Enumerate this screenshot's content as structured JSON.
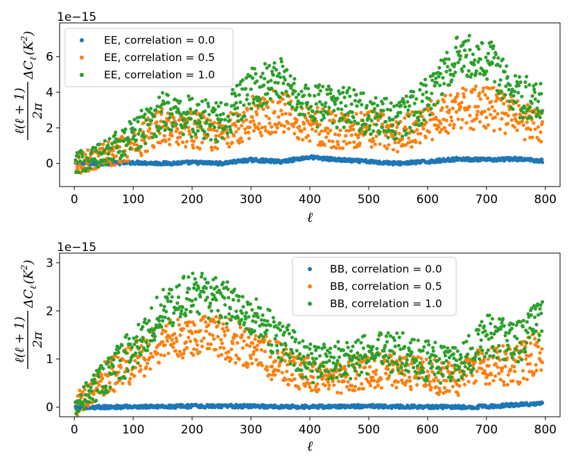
{
  "colors": {
    "c0": "#1f77b4",
    "c1": "#ff7f0e",
    "c2": "#2ca02c"
  },
  "chart_data": [
    {
      "type": "scatter",
      "name": "EE",
      "title": "",
      "xlabel": "ℓ",
      "ylabel": {
        "fraction_numerator": "ℓ(ℓ + 1)",
        "fraction_denominator": "2π",
        "rest": "ΔC",
        "subscript": "ℓ",
        "paren_open": "(K",
        "superscript": "2",
        "paren_close": ")"
      },
      "offset_text": "1e−15",
      "xlim": [
        -25,
        825
      ],
      "ylim": [
        -1.3,
        7.9
      ],
      "xticks": [
        0,
        100,
        200,
        300,
        400,
        500,
        600,
        700,
        800
      ],
      "xtick_labels": [
        "0",
        "100",
        "200",
        "300",
        "400",
        "500",
        "600",
        "700",
        "800"
      ],
      "yticks": [
        0,
        2,
        4,
        6
      ],
      "ytick_labels": [
        "0",
        "2",
        "4",
        "6"
      ],
      "legend_position": "upper-left",
      "series": [
        {
          "name": "EE, correlation = 0.0",
          "color": "#1f77b4",
          "x": [
            0,
            50,
            100,
            150,
            200,
            250,
            300,
            350,
            400,
            450,
            500,
            550,
            600,
            650,
            700,
            750,
            795
          ],
          "y": [
            0.0,
            0.0,
            0.05,
            0.0,
            0.05,
            0.0,
            0.2,
            0.1,
            0.35,
            0.2,
            0.1,
            0.0,
            0.1,
            0.25,
            0.2,
            0.25,
            0.15
          ]
        },
        {
          "name": "EE, correlation = 0.5",
          "color": "#ff7f0e",
          "x": [
            0,
            50,
            100,
            150,
            200,
            250,
            300,
            350,
            400,
            450,
            500,
            550,
            600,
            650,
            700,
            750,
            795
          ],
          "y": [
            0.0,
            0.4,
            1.0,
            2.2,
            1.9,
            1.6,
            2.6,
            3.0,
            2.2,
            1.8,
            2.0,
            1.6,
            2.3,
            3.0,
            3.2,
            2.6,
            2.0
          ]
        },
        {
          "name": "EE, correlation = 1.0",
          "color": "#2ca02c",
          "x": [
            0,
            50,
            100,
            150,
            200,
            250,
            300,
            350,
            400,
            450,
            500,
            550,
            600,
            650,
            700,
            750,
            795
          ],
          "y": [
            0.0,
            0.5,
            1.6,
            3.0,
            2.6,
            2.3,
            4.2,
            4.8,
            3.2,
            3.2,
            2.8,
            2.4,
            3.6,
            6.0,
            6.0,
            3.8,
            3.5
          ]
        }
      ]
    },
    {
      "type": "scatter",
      "name": "BB",
      "title": "",
      "xlabel": "ℓ",
      "ylabel": {
        "fraction_numerator": "ℓ(ℓ + 1)",
        "fraction_denominator": "2π",
        "rest": "ΔC",
        "subscript": "ℓ",
        "paren_open": "(K",
        "superscript": "2",
        "paren_close": ")"
      },
      "offset_text": "1e−15",
      "xlim": [
        -25,
        825
      ],
      "ylim": [
        -0.2,
        3.2
      ],
      "xticks": [
        0,
        100,
        200,
        300,
        400,
        500,
        600,
        700,
        800
      ],
      "xtick_labels": [
        "0",
        "100",
        "200",
        "300",
        "400",
        "500",
        "600",
        "700",
        "800"
      ],
      "yticks": [
        0,
        1,
        2,
        3
      ],
      "ytick_labels": [
        "0",
        "1",
        "2",
        "3"
      ],
      "legend_position": "upper-right",
      "series": [
        {
          "name": "BB, correlation = 0.0",
          "color": "#1f77b4",
          "x": [
            0,
            50,
            100,
            150,
            200,
            250,
            300,
            350,
            400,
            450,
            500,
            550,
            600,
            650,
            700,
            750,
            795
          ],
          "y": [
            0.0,
            0.0,
            0.01,
            0.01,
            0.02,
            0.02,
            0.02,
            0.01,
            0.01,
            0.01,
            0.02,
            0.01,
            0.01,
            0.0,
            0.01,
            0.05,
            0.08
          ]
        },
        {
          "name": "BB, correlation = 0.5",
          "color": "#ff7f0e",
          "x": [
            0,
            50,
            100,
            150,
            200,
            250,
            300,
            350,
            400,
            450,
            500,
            550,
            600,
            650,
            700,
            750,
            795
          ],
          "y": [
            0.0,
            0.6,
            0.9,
            1.4,
            1.5,
            1.45,
            1.25,
            0.9,
            0.65,
            0.65,
            0.75,
            0.75,
            0.65,
            0.55,
            0.9,
            0.85,
            1.2
          ]
        },
        {
          "name": "BB, correlation = 1.0",
          "color": "#2ca02c",
          "x": [
            0,
            50,
            100,
            150,
            200,
            250,
            300,
            350,
            400,
            450,
            500,
            550,
            600,
            650,
            700,
            750,
            795
          ],
          "y": [
            0.0,
            0.6,
            1.2,
            2.0,
            2.4,
            2.2,
            1.95,
            1.4,
            0.9,
            0.95,
            1.1,
            1.15,
            0.95,
            0.85,
            1.5,
            1.3,
            1.9
          ]
        }
      ]
    }
  ]
}
